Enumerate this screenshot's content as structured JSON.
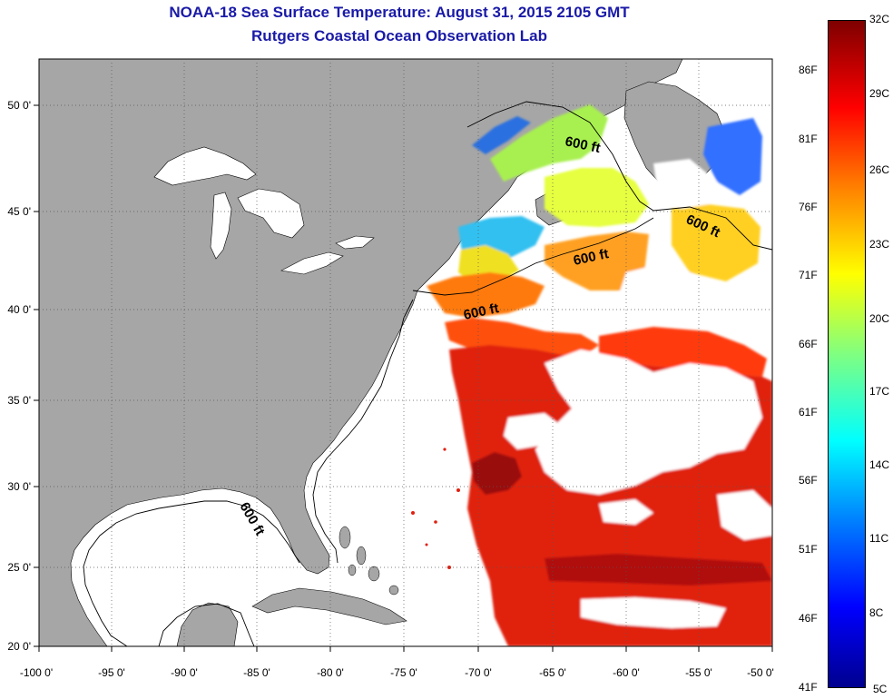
{
  "title": "NOAA-18 Sea Surface Temperature:  August 31, 2015 2105 GMT",
  "subtitle": "Rutgers Coastal Ocean Observation Lab",
  "map": {
    "lon_ticks": [
      "-100 0'",
      "-95 0'",
      "-90 0'",
      "-85 0'",
      "-80 0'",
      "-75 0'",
      "-70 0'",
      "-65 0'",
      "-60 0'",
      "-55 0'",
      "-50 0'"
    ],
    "lat_ticks": [
      "50 0'",
      "45 0'",
      "40 0'",
      "35 0'",
      "30 0'",
      "25 0'",
      "20 0'"
    ],
    "isobath_labels": [
      "600 ft",
      "600 ft",
      "600 ft",
      "600 ft",
      "600 ft"
    ],
    "colors": {
      "land": "#a6a6a6",
      "ocean_bg": "#ffffff",
      "title": "#1a1aa8"
    }
  },
  "colorbar": {
    "celsius_labels": [
      "32C",
      "29C",
      "26C",
      "23C",
      "20C",
      "17C",
      "14C",
      "11C",
      "8C",
      "5C"
    ],
    "fahrenheit_labels": [
      "86F",
      "81F",
      "76F",
      "71F",
      "66F",
      "61F",
      "56F",
      "51F",
      "46F",
      "41F"
    ],
    "stops": [
      "#7f0000",
      "#ff0000",
      "#ff8000",
      "#ffff00",
      "#80ff80",
      "#00ffff",
      "#0080ff",
      "#0000ff",
      "#00008f"
    ]
  }
}
